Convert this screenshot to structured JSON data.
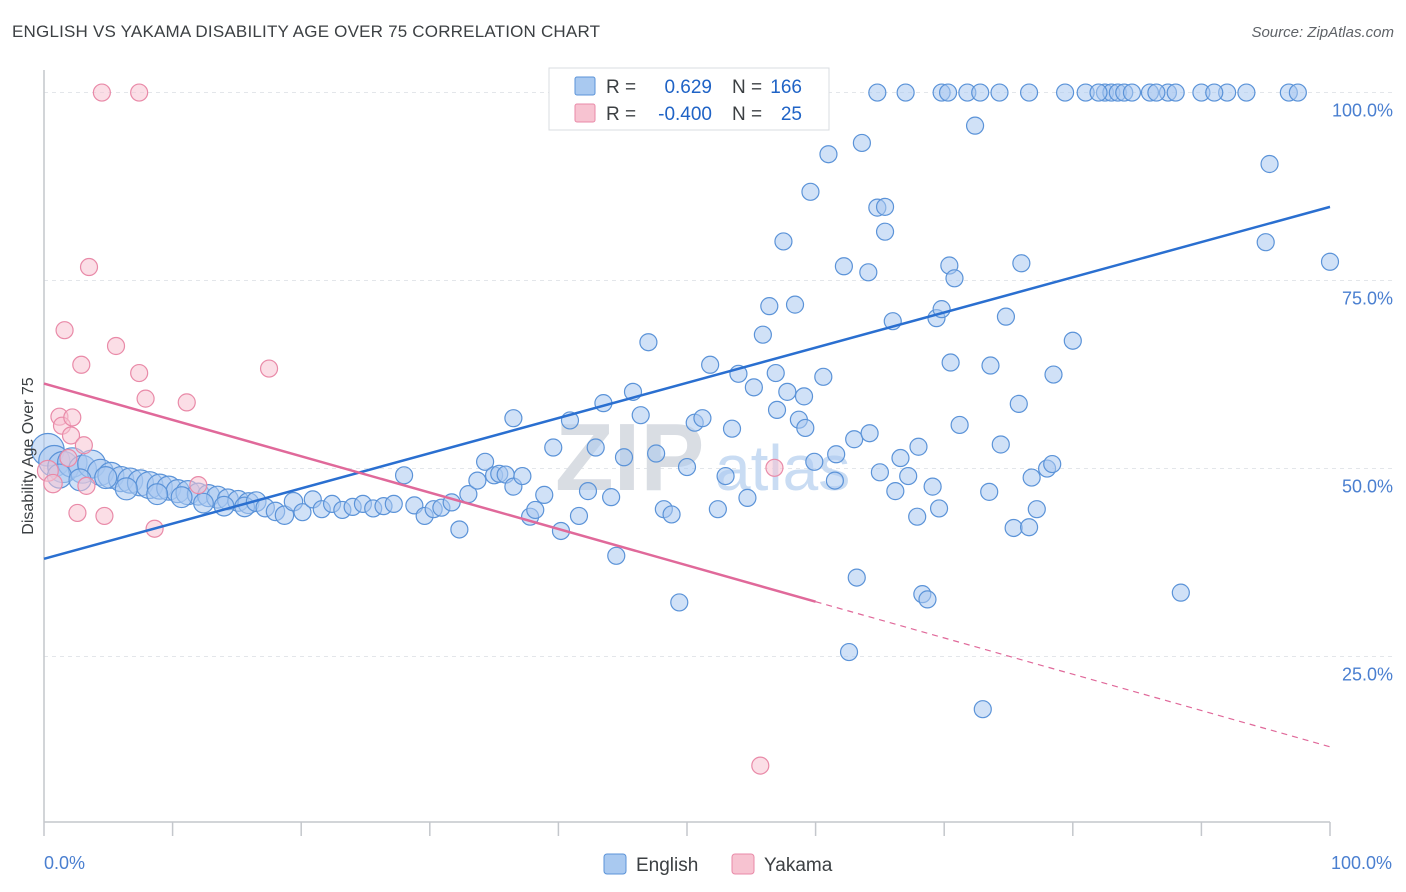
{
  "title": "ENGLISH VS YAKAMA DISABILITY AGE OVER 75 CORRELATION CHART",
  "source": "Source: ZipAtlas.com",
  "watermark": {
    "zip": "ZIP",
    "atlas": "atlas"
  },
  "colors": {
    "english_fill": "#a9c9f0",
    "english_stroke": "#5b93d8",
    "english_line": "#2a6fd0",
    "yakama_fill": "#f7c3d1",
    "yakama_stroke": "#e98aa8",
    "yakama_line": "#e0699a",
    "tick_text": "#4a7fd0",
    "grid": "#e3e6ea"
  },
  "legend": {
    "rows": [
      {
        "r_label": "R =",
        "r_value": "0.629",
        "n_label": "N =",
        "n_value": "166"
      },
      {
        "r_label": "R =",
        "r_value": "-0.400",
        "n_label": "N =",
        "n_value": "25"
      }
    ]
  },
  "bottom_legend": [
    {
      "label": "English"
    },
    {
      "label": "Yakama"
    }
  ],
  "chart_data": {
    "type": "scatter",
    "title": "ENGLISH VS YAKAMA DISABILITY AGE OVER 75 CORRELATION CHART",
    "xlabel": "",
    "ylabel": "Disability Age Over 75",
    "xlim": [
      0,
      100
    ],
    "ylim": [
      3,
      103
    ],
    "x_tick_labels": {
      "left": "0.0%",
      "right": "100.0%"
    },
    "y_ticks": [
      {
        "value": 25,
        "label": "25.0%"
      },
      {
        "value": 50,
        "label": "50.0%"
      },
      {
        "value": 75,
        "label": "75.0%"
      },
      {
        "value": 100,
        "label": "100.0%"
      }
    ],
    "grid": "horizontal dashed",
    "legend_position": "top-center",
    "series": [
      {
        "name": "English",
        "R": 0.629,
        "N": 166,
        "trend": {
          "x0": 0,
          "y0": 38.0,
          "x1": 100,
          "y1": 84.8
        },
        "points": [
          [
            0.3,
            52.5,
            2.2
          ],
          [
            0.8,
            51.0,
            2.0
          ],
          [
            1.5,
            50.2,
            2.0
          ],
          [
            2.2,
            50.8,
            1.8
          ],
          [
            3.0,
            49.9,
            1.6
          ],
          [
            3.7,
            50.6,
            1.6
          ],
          [
            4.4,
            49.5,
            1.4
          ],
          [
            5.2,
            49.1,
            1.4
          ],
          [
            6.0,
            48.6,
            1.3
          ],
          [
            6.7,
            48.4,
            1.3
          ],
          [
            7.5,
            48.1,
            1.4
          ],
          [
            8.2,
            47.8,
            1.5
          ],
          [
            9.0,
            47.6,
            1.3
          ],
          [
            9.7,
            47.4,
            1.2
          ],
          [
            10.4,
            47.0,
            1.1
          ],
          [
            11.2,
            46.8,
            1.2
          ],
          [
            12.0,
            46.6,
            1.0
          ],
          [
            12.8,
            46.4,
            1.0
          ],
          [
            13.5,
            46.2,
            1.0
          ],
          [
            14.3,
            45.9,
            0.9
          ],
          [
            15.1,
            45.7,
            0.9
          ],
          [
            15.9,
            45.4,
            0.9
          ],
          [
            1.2,
            49.0,
            1.2
          ],
          [
            2.8,
            48.5,
            1.0
          ],
          [
            4.8,
            48.8,
            1.0
          ],
          [
            6.4,
            47.3,
            1.0
          ],
          [
            8.8,
            46.6,
            0.9
          ],
          [
            10.7,
            46.2,
            0.9
          ],
          [
            12.4,
            45.4,
            0.8
          ],
          [
            14.0,
            45.0,
            0.8
          ],
          [
            15.6,
            44.9,
            0.8
          ],
          [
            16.5,
            45.6,
            0.8
          ],
          [
            17.2,
            44.8,
            0.7
          ],
          [
            18.0,
            44.3,
            0.7
          ],
          [
            18.7,
            43.8,
            0.7
          ],
          [
            19.4,
            45.6,
            0.7
          ],
          [
            20.1,
            44.2,
            0.6
          ],
          [
            20.9,
            45.9,
            0.6
          ],
          [
            21.6,
            44.6,
            0.6
          ],
          [
            22.4,
            45.3,
            0.6
          ],
          [
            23.2,
            44.5,
            0.6
          ],
          [
            24.0,
            44.9,
            0.6
          ],
          [
            24.8,
            45.3,
            0.6
          ],
          [
            25.6,
            44.7,
            0.6
          ],
          [
            26.4,
            45.0,
            0.6
          ],
          [
            27.2,
            45.3,
            0.6
          ],
          [
            28.0,
            49.1,
            0.6
          ],
          [
            28.8,
            45.1,
            0.6
          ],
          [
            29.6,
            43.7,
            0.6
          ],
          [
            30.3,
            44.6,
            0.6
          ],
          [
            30.9,
            44.8,
            0.6
          ],
          [
            31.7,
            45.5,
            0.6
          ],
          [
            32.3,
            41.9,
            0.6
          ],
          [
            33.0,
            46.6,
            0.6
          ],
          [
            33.7,
            48.4,
            0.6
          ],
          [
            34.3,
            50.9,
            0.6
          ],
          [
            35.0,
            49.1,
            0.6
          ],
          [
            35.4,
            49.3,
            0.6
          ],
          [
            35.9,
            49.2,
            0.6
          ],
          [
            36.5,
            47.6,
            0.6
          ],
          [
            37.2,
            49.0,
            0.6
          ],
          [
            37.8,
            43.6,
            0.6
          ],
          [
            38.2,
            44.5,
            0.6
          ],
          [
            38.9,
            46.5,
            0.6
          ],
          [
            39.6,
            52.8,
            0.6
          ],
          [
            40.2,
            41.7,
            0.6
          ],
          [
            40.9,
            56.4,
            0.6
          ],
          [
            36.5,
            56.7,
            0.6
          ],
          [
            41.6,
            43.7,
            0.6
          ],
          [
            42.3,
            47.0,
            0.6
          ],
          [
            42.9,
            52.8,
            0.6
          ],
          [
            43.5,
            58.7,
            0.6
          ],
          [
            44.1,
            46.2,
            0.6
          ],
          [
            44.5,
            38.4,
            0.6
          ],
          [
            45.1,
            51.5,
            0.6
          ],
          [
            45.8,
            60.2,
            0.6
          ],
          [
            46.4,
            57.1,
            0.6
          ],
          [
            47.0,
            66.8,
            0.6
          ],
          [
            47.6,
            52.0,
            0.6
          ],
          [
            48.2,
            44.6,
            0.6
          ],
          [
            48.8,
            43.9,
            0.6
          ],
          [
            49.4,
            32.2,
            0.6
          ],
          [
            50.0,
            50.2,
            0.6
          ],
          [
            50.6,
            56.1,
            0.6
          ],
          [
            51.2,
            56.7,
            0.6
          ],
          [
            51.8,
            63.8,
            0.6
          ],
          [
            52.4,
            44.6,
            0.6
          ],
          [
            53.0,
            49.0,
            0.6
          ],
          [
            53.5,
            55.3,
            0.6
          ],
          [
            54.0,
            62.6,
            0.6
          ],
          [
            54.7,
            46.1,
            0.6
          ],
          [
            55.2,
            60.8,
            0.6
          ],
          [
            55.9,
            67.8,
            0.6
          ],
          [
            56.4,
            71.6,
            0.6
          ],
          [
            56.9,
            62.7,
            0.6
          ],
          [
            57.5,
            80.2,
            0.6
          ],
          [
            57.8,
            60.2,
            0.6
          ],
          [
            58.4,
            71.8,
            0.6
          ],
          [
            58.7,
            56.5,
            0.6
          ],
          [
            59.1,
            59.6,
            0.6
          ],
          [
            59.6,
            86.8,
            0.6
          ],
          [
            59.9,
            50.9,
            0.6
          ],
          [
            60.6,
            62.2,
            0.6
          ],
          [
            61.0,
            91.8,
            0.6
          ],
          [
            61.6,
            51.9,
            0.6
          ],
          [
            62.2,
            76.9,
            0.6
          ],
          [
            62.6,
            25.6,
            0.6
          ],
          [
            63.0,
            53.9,
            0.6
          ],
          [
            63.6,
            93.3,
            0.6
          ],
          [
            64.2,
            54.7,
            0.6
          ],
          [
            64.8,
            84.7,
            0.6
          ],
          [
            65.4,
            84.8,
            0.6
          ],
          [
            65.4,
            81.5,
            0.6
          ],
          [
            64.1,
            76.1,
            0.6
          ],
          [
            66.0,
            69.6,
            0.6
          ],
          [
            66.6,
            51.4,
            0.6
          ],
          [
            67.2,
            49.0,
            0.6
          ],
          [
            67.9,
            43.6,
            0.6
          ],
          [
            68.3,
            33.3,
            0.6
          ],
          [
            68.7,
            32.6,
            0.6
          ],
          [
            69.1,
            47.6,
            0.6
          ],
          [
            69.6,
            44.7,
            0.6
          ],
          [
            70.4,
            77.0,
            0.6
          ],
          [
            70.8,
            75.3,
            0.6
          ],
          [
            69.4,
            70.0,
            0.6
          ],
          [
            69.8,
            71.2,
            0.6
          ],
          [
            70.5,
            64.1,
            0.6
          ],
          [
            72.4,
            95.6,
            0.6
          ],
          [
            73.0,
            18.0,
            0.6
          ],
          [
            73.6,
            63.7,
            0.6
          ],
          [
            74.8,
            70.2,
            0.6
          ],
          [
            75.4,
            42.1,
            0.6
          ],
          [
            76.0,
            77.3,
            0.6
          ],
          [
            76.6,
            42.2,
            0.6
          ],
          [
            77.2,
            44.6,
            0.6
          ],
          [
            78.0,
            50.0,
            0.6
          ],
          [
            78.4,
            50.6,
            0.6
          ],
          [
            80.0,
            67.0,
            0.6
          ],
          [
            82.5,
            100.0,
            0.6
          ],
          [
            83.0,
            100.0,
            0.6
          ],
          [
            83.5,
            100.0,
            0.6
          ],
          [
            84.0,
            100.0,
            0.6
          ],
          [
            84.6,
            100.0,
            0.6
          ],
          [
            86.0,
            100.0,
            0.6
          ],
          [
            87.4,
            100.0,
            0.6
          ],
          [
            88.4,
            33.5,
            0.6
          ],
          [
            90.0,
            100.0,
            0.6
          ],
          [
            92.0,
            100.0,
            0.6
          ],
          [
            95.0,
            80.1,
            0.6
          ],
          [
            95.3,
            90.5,
            0.6
          ],
          [
            96.8,
            100.0,
            0.6
          ],
          [
            100.0,
            77.5,
            0.6
          ],
          [
            64.8,
            100.0,
            0.6
          ],
          [
            69.8,
            100.0,
            0.6
          ],
          [
            70.3,
            100.0,
            0.6
          ],
          [
            71.8,
            100.0,
            0.6
          ],
          [
            72.8,
            100.0,
            0.6
          ],
          [
            74.3,
            100.0,
            0.6
          ],
          [
            81.0,
            100.0,
            0.6
          ],
          [
            82.0,
            100.0,
            0.6
          ],
          [
            67.0,
            100.0,
            0.6
          ],
          [
            76.6,
            100.0,
            0.6
          ],
          [
            79.4,
            100.0,
            0.6
          ],
          [
            86.5,
            100.0,
            0.6
          ],
          [
            88.0,
            100.0,
            0.6
          ],
          [
            91.0,
            100.0,
            0.6
          ],
          [
            93.5,
            100.0,
            0.6
          ],
          [
            97.5,
            100.0,
            0.6
          ],
          [
            75.8,
            58.6,
            0.6
          ],
          [
            78.5,
            62.5,
            0.6
          ],
          [
            66.2,
            47.0,
            0.6
          ],
          [
            59.2,
            55.4,
            0.6
          ],
          [
            57.0,
            57.8,
            0.6
          ],
          [
            61.5,
            48.4,
            0.6
          ],
          [
            73.5,
            46.9,
            0.6
          ],
          [
            65.0,
            49.5,
            0.6
          ],
          [
            63.2,
            35.5,
            0.6
          ],
          [
            71.2,
            55.8,
            0.6
          ],
          [
            68.0,
            52.9,
            0.6
          ],
          [
            74.4,
            53.2,
            0.6
          ],
          [
            76.8,
            48.8,
            0.6
          ]
        ]
      },
      {
        "name": "Yakama",
        "R": -0.4,
        "N": 25,
        "trend": {
          "x0": 0,
          "y0": 61.3,
          "x1": 60,
          "y1": 32.3,
          "dash_to_x": 100,
          "dash_to_y": 13.0
        },
        "points": [
          [
            0.3,
            49.7,
            0.9
          ],
          [
            0.7,
            48.0,
            0.7
          ],
          [
            1.2,
            56.9,
            0.6
          ],
          [
            1.4,
            55.7,
            0.6
          ],
          [
            1.6,
            68.4,
            0.6
          ],
          [
            1.9,
            51.4,
            0.6
          ],
          [
            2.1,
            54.4,
            0.6
          ],
          [
            2.2,
            56.8,
            0.6
          ],
          [
            2.6,
            44.1,
            0.6
          ],
          [
            2.9,
            63.8,
            0.6
          ],
          [
            3.1,
            53.1,
            0.6
          ],
          [
            3.3,
            47.7,
            0.6
          ],
          [
            3.5,
            76.8,
            0.6
          ],
          [
            4.5,
            100.0,
            0.6
          ],
          [
            4.7,
            43.7,
            0.6
          ],
          [
            5.6,
            66.3,
            0.6
          ],
          [
            7.4,
            100.0,
            0.6
          ],
          [
            7.4,
            62.7,
            0.6
          ],
          [
            7.9,
            59.3,
            0.6
          ],
          [
            8.6,
            42.0,
            0.6
          ],
          [
            11.1,
            58.8,
            0.6
          ],
          [
            12.0,
            47.8,
            0.6
          ],
          [
            17.5,
            63.3,
            0.6
          ],
          [
            55.7,
            10.5,
            0.6
          ],
          [
            56.8,
            50.1,
            0.6
          ]
        ]
      }
    ]
  }
}
